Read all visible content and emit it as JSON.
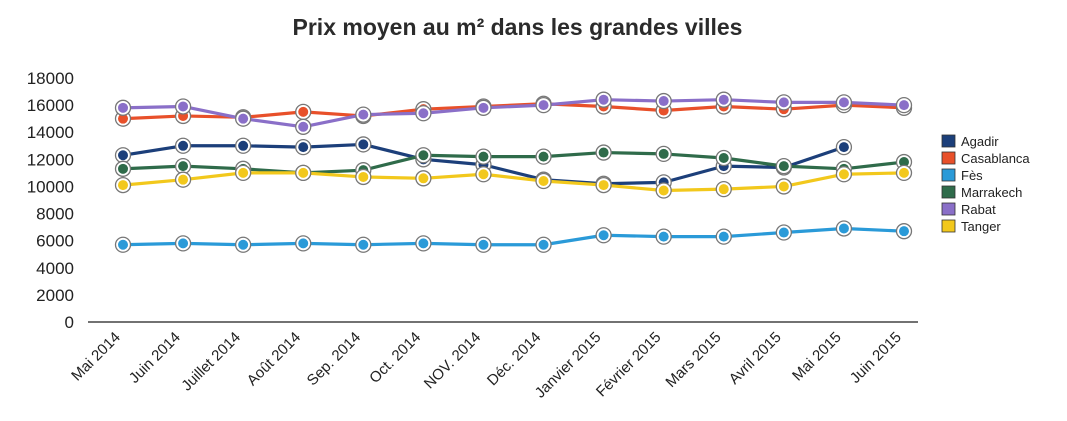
{
  "chart_data": {
    "type": "line",
    "title": "Prix moyen au m² dans les grandes villes",
    "xlabel": "",
    "ylabel": "",
    "categories": [
      "Mai 2014",
      "Juin 2014",
      "Juillet 2014",
      "Août 2014",
      "Sep. 2014",
      "Oct. 2014",
      "NOV. 2014",
      "Déc. 2014",
      "Janvier 2015",
      "Février 2015",
      "Mars 2015",
      "Avril 2015",
      "Mai 2015",
      "Juin 2015"
    ],
    "ylim": [
      0,
      18000
    ],
    "yticks": [
      0,
      2000,
      4000,
      6000,
      8000,
      10000,
      12000,
      14000,
      16000,
      18000
    ],
    "ytick_labels": [
      "0",
      "2000",
      "4000",
      "6000",
      "8000",
      "10000",
      "12000",
      "14000",
      "16000",
      "18000"
    ],
    "grid": false,
    "legend_position": "right",
    "series": [
      {
        "name": "Agadir",
        "color": "#1c3f7a",
        "values": [
          12300,
          13000,
          13000,
          12900,
          13100,
          12000,
          11600,
          10500,
          10200,
          10300,
          11500,
          11400,
          12900,
          null
        ]
      },
      {
        "name": "Casablanca",
        "color": "#e8502a",
        "values": [
          15000,
          15200,
          15100,
          15500,
          15200,
          15700,
          15900,
          16100,
          15900,
          15600,
          15900,
          15700,
          16000,
          15800
        ]
      },
      {
        "name": "Fès",
        "color": "#2a9ad8",
        "values": [
          5700,
          5800,
          5700,
          5800,
          5700,
          5800,
          5700,
          5700,
          6400,
          6300,
          6300,
          6600,
          6900,
          6700
        ]
      },
      {
        "name": "Marrakech",
        "color": "#2f6b4a",
        "values": [
          11300,
          11500,
          11300,
          11000,
          11200,
          12300,
          12200,
          12200,
          12500,
          12400,
          12100,
          11500,
          11300,
          11800
        ]
      },
      {
        "name": "Rabat",
        "color": "#8a6fc8",
        "values": [
          15800,
          15900,
          15000,
          14400,
          15300,
          15400,
          15800,
          16000,
          16400,
          16300,
          16400,
          16200,
          16200,
          16000
        ]
      },
      {
        "name": "Tanger",
        "color": "#f2c81c",
        "values": [
          10100,
          10500,
          11000,
          11000,
          10700,
          10600,
          10900,
          10400,
          10100,
          9700,
          9800,
          10000,
          10900,
          11000
        ]
      }
    ]
  }
}
